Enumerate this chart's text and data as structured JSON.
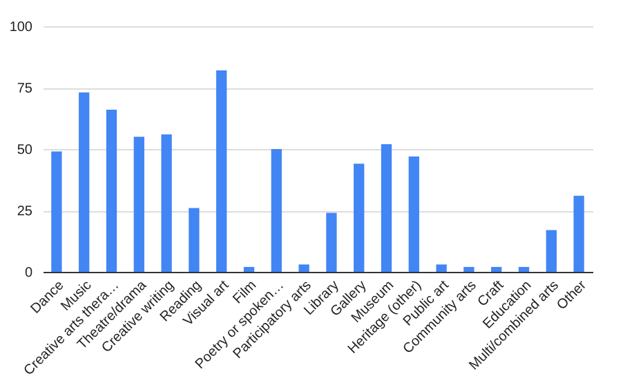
{
  "chart_data": {
    "type": "bar",
    "categories": [
      "Dance",
      "Music",
      "Creative arts thera…",
      "Theatre/drama",
      "Creative writing",
      "Reading",
      "Visual art",
      "Film",
      "Poetry or spoken…",
      "Participatory arts",
      "Library",
      "Gallery",
      "Museum",
      "Heritage (other)",
      "Public art",
      "Community arts",
      "Craft",
      "Education",
      "Multi/combined arts",
      "Other"
    ],
    "values": [
      49,
      73,
      66,
      55,
      56,
      26,
      82,
      2,
      50,
      3,
      24,
      44,
      52,
      47,
      3,
      2,
      2,
      2,
      17,
      31
    ],
    "color": "#4285f4",
    "ylim": [
      0,
      100
    ],
    "yticks": [
      0,
      25,
      50,
      75,
      100
    ],
    "grid": "y"
  }
}
